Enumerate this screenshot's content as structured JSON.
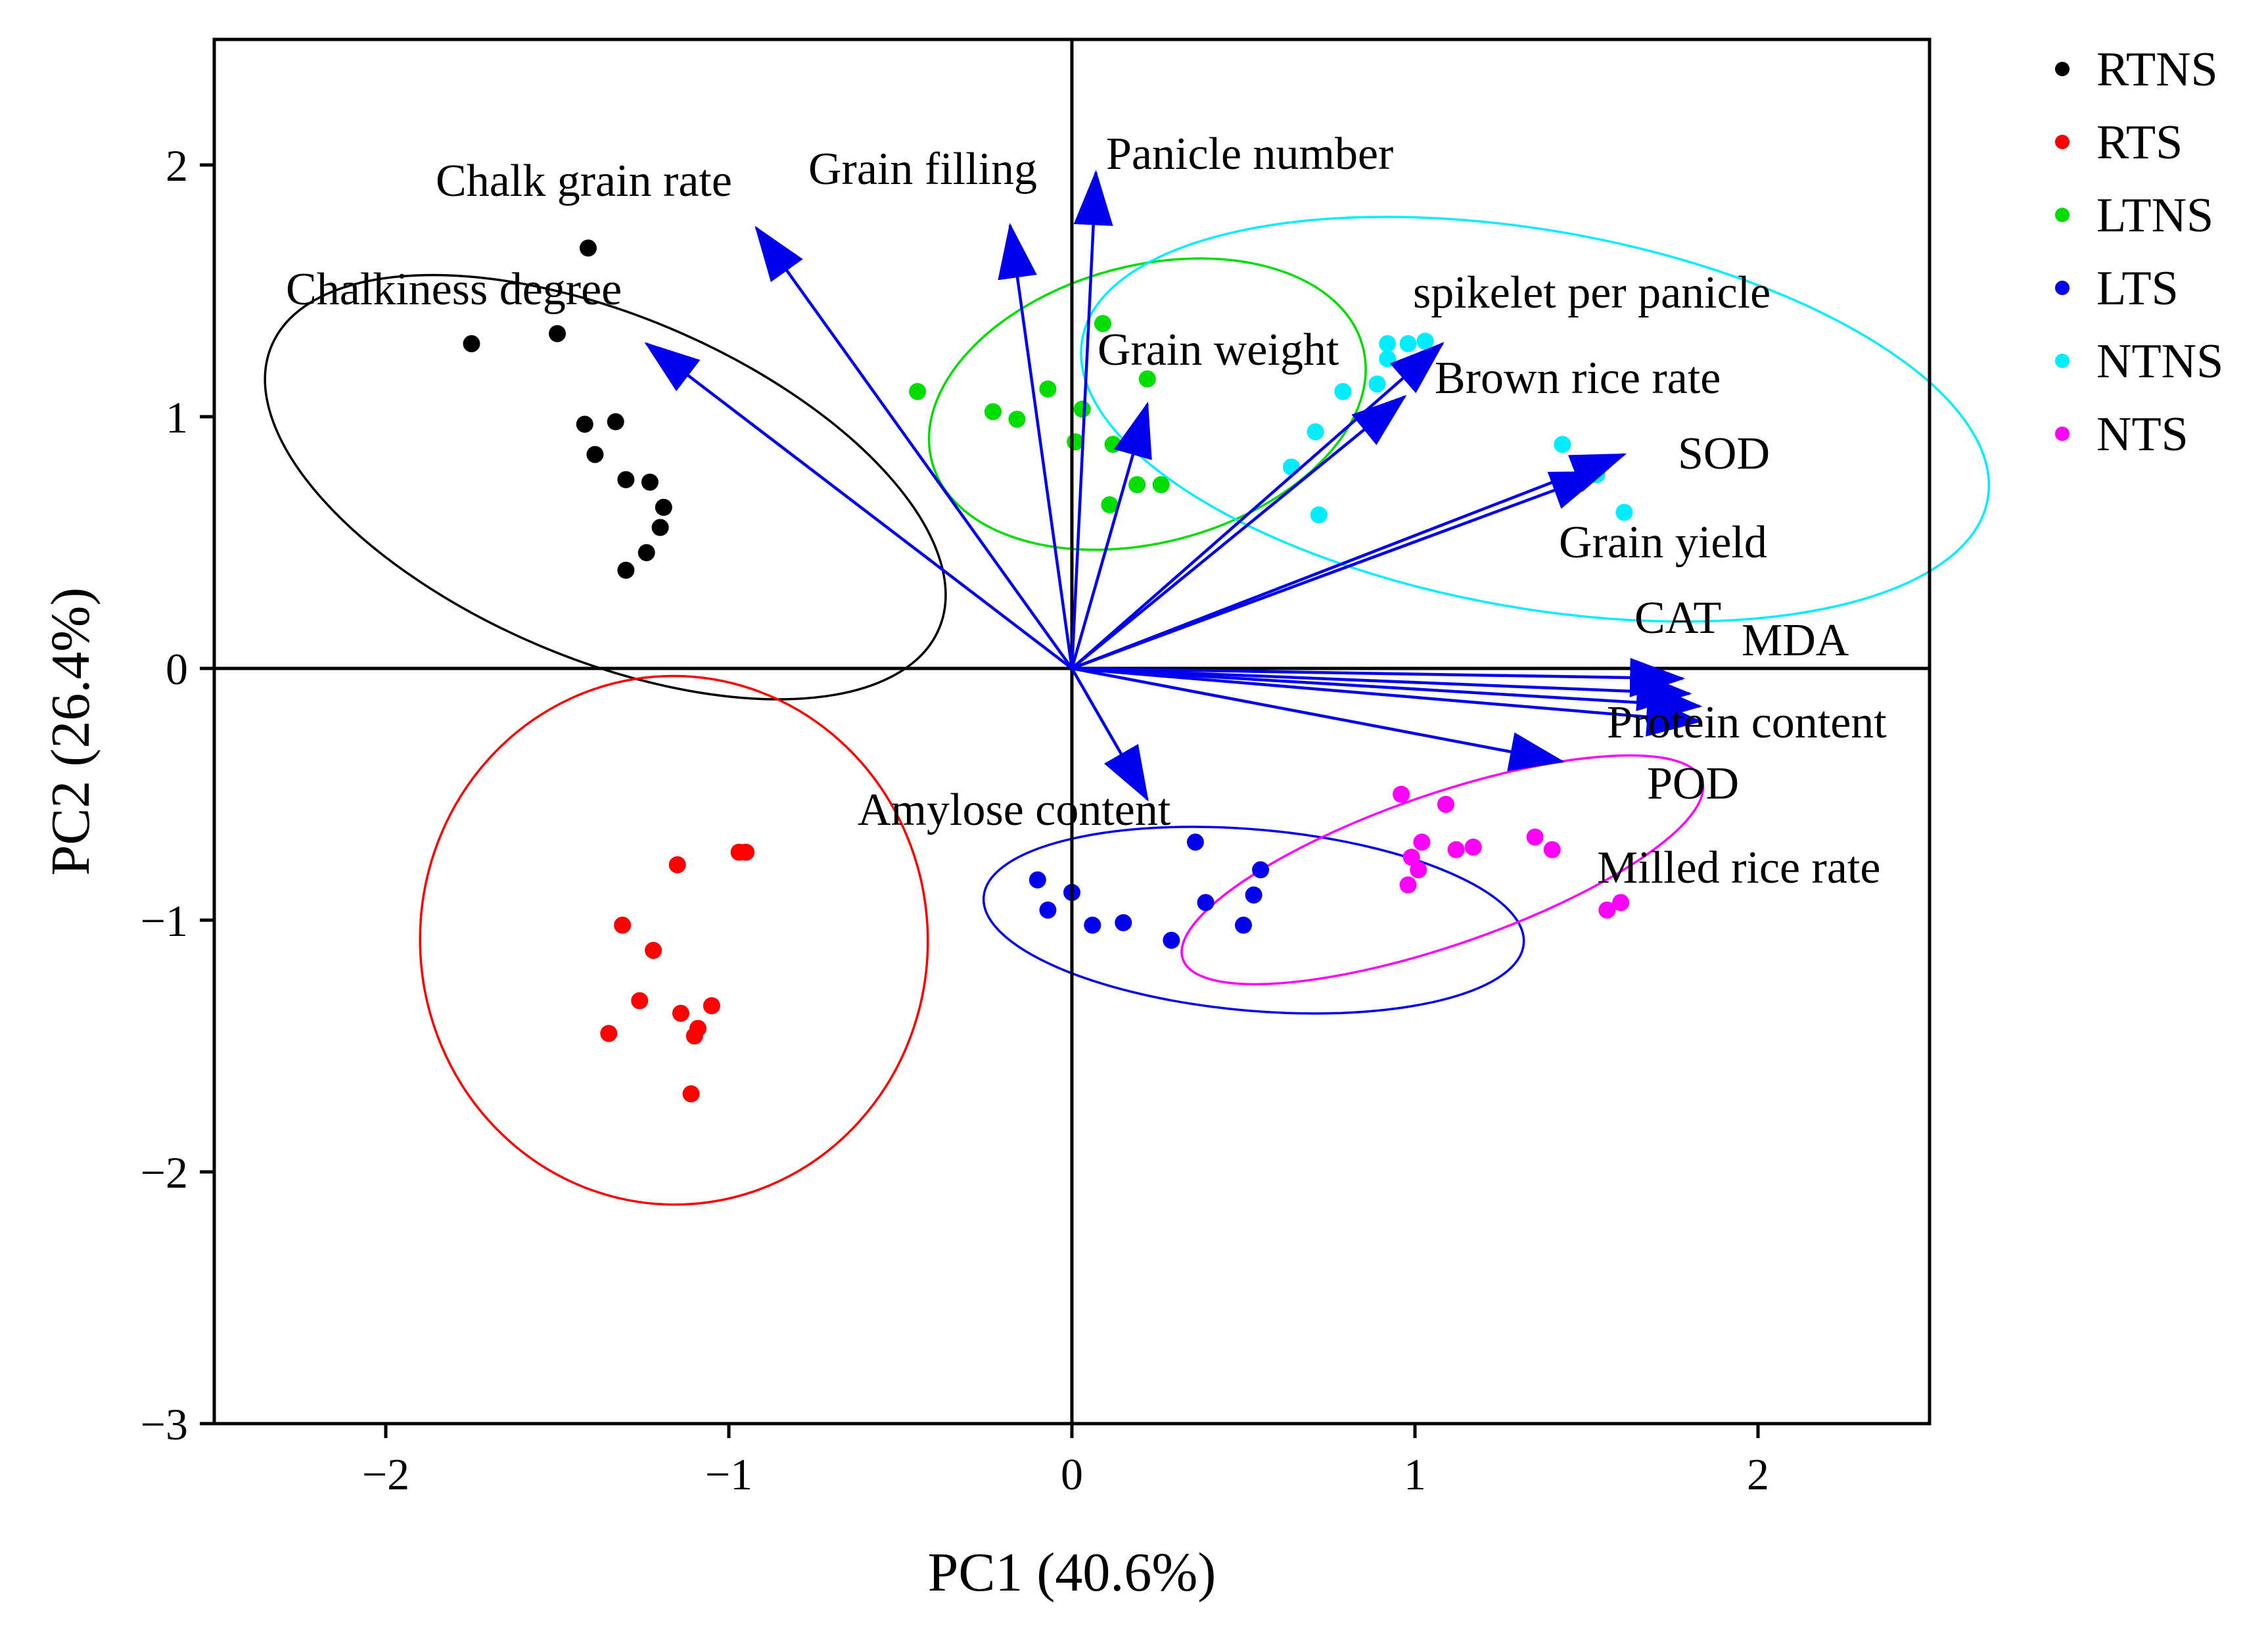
{
  "chart_data": {
    "type": "scatter",
    "subtype": "pca-biplot",
    "xlabel": "PC1 (40.6%)",
    "ylabel": "PC2 (26.4%)",
    "xlim": [
      -2.5,
      2.5
    ],
    "ylim": [
      -3.0,
      2.5
    ],
    "xticks": [
      {
        "v": -2,
        "label": "−2"
      },
      {
        "v": -1,
        "label": "−1"
      },
      {
        "v": 0,
        "label": "0"
      },
      {
        "v": 1,
        "label": "1"
      },
      {
        "v": 2,
        "label": "2"
      }
    ],
    "yticks": [
      {
        "v": 2,
        "label": "2"
      },
      {
        "v": 1,
        "label": "1"
      },
      {
        "v": 0,
        "label": "0"
      },
      {
        "v": -1,
        "label": "−1"
      },
      {
        "v": -2,
        "label": "−2"
      },
      {
        "v": -3,
        "label": "−3"
      }
    ],
    "arrow_color": "#0000ee",
    "series": [
      {
        "name": "RTNS",
        "color": "#000000",
        "ellipse": {
          "cx": -1.36,
          "cy": 0.72,
          "rx": 0.5,
          "ry": 1.44,
          "angle": 67
        },
        "points": [
          [
            -1.75,
            1.29
          ],
          [
            -1.5,
            1.33
          ],
          [
            -1.41,
            1.67
          ],
          [
            -1.42,
            0.97
          ],
          [
            -1.33,
            0.98
          ],
          [
            -1.39,
            0.85
          ],
          [
            -1.3,
            0.75
          ],
          [
            -1.23,
            0.74
          ],
          [
            -1.19,
            0.64
          ],
          [
            -1.2,
            0.56
          ],
          [
            -1.24,
            0.46
          ],
          [
            -1.3,
            0.39
          ]
        ]
      },
      {
        "name": "RTS",
        "color": "#ff0000",
        "ellipse": {
          "cx": -1.16,
          "cy": -1.08,
          "rx": 0.74,
          "ry": 1.05,
          "angle": 2
        },
        "points": [
          [
            -0.97,
            -0.73
          ],
          [
            -0.95,
            -0.73
          ],
          [
            -1.15,
            -0.78
          ],
          [
            -1.31,
            -1.02
          ],
          [
            -1.22,
            -1.12
          ],
          [
            -1.26,
            -1.32
          ],
          [
            -1.35,
            -1.45
          ],
          [
            -1.14,
            -1.37
          ],
          [
            -1.05,
            -1.34
          ],
          [
            -1.09,
            -1.43
          ],
          [
            -1.1,
            -1.46
          ],
          [
            -1.11,
            -1.69
          ]
        ]
      },
      {
        "name": "LTNS",
        "color": "#00dd00",
        "ellipse": {
          "cx": 0.22,
          "cy": 1.05,
          "rx": 0.65,
          "ry": 0.55,
          "angle": 15
        },
        "points": [
          [
            -0.45,
            1.1
          ],
          [
            -0.23,
            1.02
          ],
          [
            -0.16,
            0.99
          ],
          [
            -0.07,
            1.11
          ],
          [
            0.03,
            1.03
          ],
          [
            0.09,
            1.37
          ],
          [
            0.22,
            1.15
          ],
          [
            0.01,
            0.9
          ],
          [
            0.12,
            0.89
          ],
          [
            0.19,
            0.73
          ],
          [
            0.26,
            0.73
          ],
          [
            0.11,
            0.65
          ]
        ]
      },
      {
        "name": "LTS",
        "color": "#0000ee",
        "ellipse": {
          "cx": 0.53,
          "cy": -1.0,
          "rx": 0.79,
          "ry": 0.36,
          "angle": -5
        },
        "points": [
          [
            -0.1,
            -0.84
          ],
          [
            -0.07,
            -0.96
          ],
          [
            0.0,
            -0.89
          ],
          [
            0.06,
            -1.02
          ],
          [
            0.15,
            -1.01
          ],
          [
            0.29,
            -1.08
          ],
          [
            0.36,
            -0.69
          ],
          [
            0.39,
            -0.93
          ],
          [
            0.5,
            -1.02
          ],
          [
            0.53,
            -0.9
          ],
          [
            0.55,
            -0.8
          ]
        ]
      },
      {
        "name": "NTNS",
        "color": "#00eeff",
        "ellipse": {
          "cx": 1.35,
          "cy": 0.99,
          "rx": 1.34,
          "ry": 0.75,
          "angle": -10
        },
        "points": [
          [
            0.92,
            1.29
          ],
          [
            0.98,
            1.29
          ],
          [
            1.03,
            1.3
          ],
          [
            0.92,
            1.23
          ],
          [
            0.89,
            1.13
          ],
          [
            0.79,
            1.1
          ],
          [
            0.71,
            0.94
          ],
          [
            0.64,
            0.8
          ],
          [
            0.72,
            0.61
          ],
          [
            1.43,
            0.89
          ],
          [
            1.53,
            0.77
          ],
          [
            1.61,
            0.62
          ]
        ]
      },
      {
        "name": "NTS",
        "color": "#ff00ff",
        "ellipse": {
          "cx": 1.08,
          "cy": -0.8,
          "rx": 0.8,
          "ry": 0.3,
          "angle": 19
        },
        "points": [
          [
            0.96,
            -0.5
          ],
          [
            1.09,
            -0.54
          ],
          [
            1.02,
            -0.69
          ],
          [
            0.99,
            -0.75
          ],
          [
            1.01,
            -0.8
          ],
          [
            1.12,
            -0.72
          ],
          [
            1.17,
            -0.71
          ],
          [
            1.35,
            -0.67
          ],
          [
            1.4,
            -0.72
          ],
          [
            0.98,
            -0.86
          ],
          [
            1.56,
            -0.96
          ],
          [
            1.6,
            -0.93
          ]
        ]
      }
    ],
    "loadings": [
      {
        "name": "Chalk grain rate",
        "x": -0.92,
        "y": 1.75
      },
      {
        "name": "Chalkiness degree",
        "x": -1.24,
        "y": 1.29
      },
      {
        "name": "Grain filling",
        "x": -0.18,
        "y": 1.76
      },
      {
        "name": "Panicle number",
        "x": 0.07,
        "y": 1.97
      },
      {
        "name": "Grain weight",
        "x": 0.22,
        "y": 1.05
      },
      {
        "name": "spikelet per panicle",
        "x": 1.08,
        "y": 1.29
      },
      {
        "name": "Brown rice rate",
        "x": 0.97,
        "y": 1.08
      },
      {
        "name": "SOD",
        "x": 1.61,
        "y": 0.85
      },
      {
        "name": "Grain yield",
        "x": 1.55,
        "y": 0.78
      },
      {
        "name": "CAT",
        "x": 1.78,
        "y": -0.04
      },
      {
        "name": "MDA",
        "x": 1.8,
        "y": -0.1
      },
      {
        "name": "Protein content",
        "x": 1.83,
        "y": -0.15
      },
      {
        "name": "POD",
        "x": 1.83,
        "y": -0.21
      },
      {
        "name": "Milled rice rate",
        "x": 1.43,
        "y": -0.37
      },
      {
        "name": "Amylose content",
        "x": 0.22,
        "y": -0.52
      }
    ]
  },
  "labels": {
    "chalk_grain_rate": "Chalk grain rate",
    "chalkiness_degree": "Chalkiness degree",
    "grain_filling": "Grain filling",
    "panicle_number": "Panicle number",
    "grain_weight": "Grain weight",
    "spikelet_per_panicle": "spikelet per panicle",
    "brown_rice_rate": "Brown rice rate",
    "sod": "SOD",
    "grain_yield": "Grain yield",
    "cat": "CAT",
    "mda": "MDA",
    "protein_content": "Protein content",
    "pod": "POD",
    "milled_rice_rate": "Milled rice rate",
    "amylose_content": "Amylose content"
  },
  "legend": [
    {
      "name": "RTNS",
      "color": "#000000"
    },
    {
      "name": "RTS",
      "color": "#ff0000"
    },
    {
      "name": "LTNS",
      "color": "#00dd00"
    },
    {
      "name": "LTS",
      "color": "#0000ee"
    },
    {
      "name": "NTNS",
      "color": "#00eeff"
    },
    {
      "name": "NTS",
      "color": "#ff00ff"
    }
  ]
}
